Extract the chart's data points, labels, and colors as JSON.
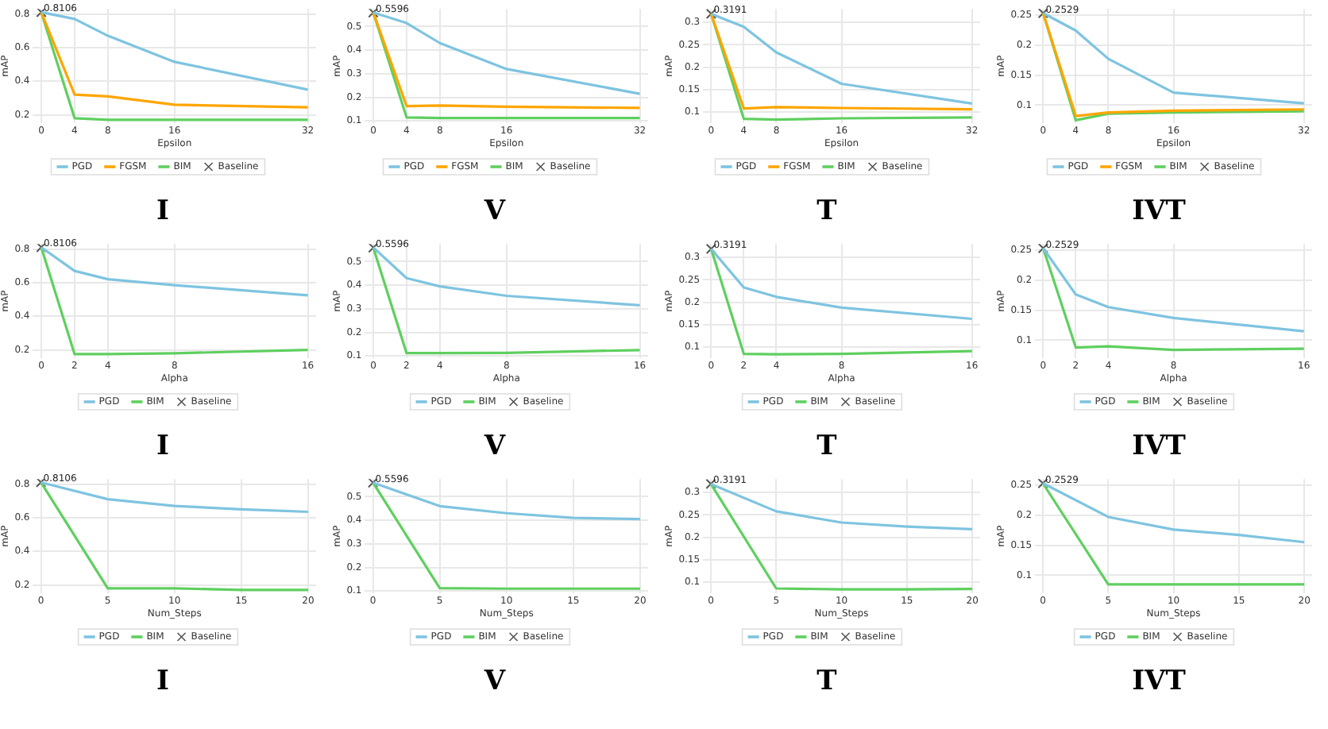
{
  "chart_data": [
    {
      "type": "line",
      "title": "I",
      "xlabel": "Epsilon",
      "ylabel": "mAP",
      "x": [
        0,
        4,
        8,
        16,
        32
      ],
      "xlim": [
        -1,
        33
      ],
      "xticks": [
        0,
        4,
        8,
        16,
        32
      ],
      "ylim": [
        0.15,
        0.83
      ],
      "yticks": [
        0.2,
        0.4,
        0.6,
        0.8
      ],
      "grid": true,
      "legend": "bottom",
      "series": [
        {
          "name": "PGD",
          "color": "#7ec4e0",
          "values": [
            0.81,
            0.77,
            0.67,
            0.515,
            0.35
          ]
        },
        {
          "name": "FGSM",
          "color": "#ffa500",
          "values": [
            0.81,
            0.32,
            0.31,
            0.26,
            0.245
          ]
        },
        {
          "name": "BIM",
          "color": "#5fcf5f",
          "values": [
            0.81,
            0.18,
            0.17,
            0.17,
            0.17
          ]
        },
        {
          "name": "Baseline",
          "type": "scatter",
          "marker": "cross",
          "color": "#555555",
          "values": [
            0.8106,
            null,
            null,
            null,
            null
          ],
          "value_labels": [
            "0.8106",
            null,
            null,
            null,
            null
          ]
        }
      ]
    },
    {
      "type": "line",
      "title": "V",
      "xlabel": "Epsilon",
      "ylabel": "mAP",
      "x": [
        0,
        4,
        8,
        16,
        32
      ],
      "xlim": [
        -1,
        33
      ],
      "xticks": [
        0,
        4,
        8,
        16,
        32
      ],
      "ylim": [
        0.09,
        0.575
      ],
      "yticks": [
        0.1,
        0.2,
        0.3,
        0.4,
        0.5
      ],
      "grid": true,
      "legend": "bottom",
      "series": [
        {
          "name": "PGD",
          "color": "#7ec4e0",
          "values": [
            0.56,
            0.515,
            0.43,
            0.32,
            0.215
          ]
        },
        {
          "name": "FGSM",
          "color": "#ffa500",
          "values": [
            0.56,
            0.163,
            0.165,
            0.16,
            0.155
          ]
        },
        {
          "name": "BIM",
          "color": "#5fcf5f",
          "values": [
            0.56,
            0.115,
            0.112,
            0.112,
            0.112
          ]
        },
        {
          "name": "Baseline",
          "type": "scatter",
          "marker": "cross",
          "color": "#555555",
          "values": [
            0.5596,
            null,
            null,
            null,
            null
          ],
          "value_labels": [
            "0.5596",
            null,
            null,
            null,
            null
          ]
        }
      ]
    },
    {
      "type": "line",
      "title": "T",
      "xlabel": "Epsilon",
      "ylabel": "mAP",
      "x": [
        0,
        4,
        8,
        16,
        32
      ],
      "xlim": [
        -1,
        33
      ],
      "xticks": [
        0,
        4,
        8,
        16,
        32
      ],
      "ylim": [
        0.075,
        0.33
      ],
      "yticks": [
        0.1,
        0.15,
        0.2,
        0.25,
        0.3
      ],
      "grid": true,
      "legend": "bottom",
      "series": [
        {
          "name": "PGD",
          "color": "#7ec4e0",
          "values": [
            0.319,
            0.29,
            0.233,
            0.163,
            0.119
          ]
        },
        {
          "name": "FGSM",
          "color": "#ffa500",
          "values": [
            0.319,
            0.108,
            0.111,
            0.109,
            0.106
          ]
        },
        {
          "name": "BIM",
          "color": "#5fcf5f",
          "values": [
            0.319,
            0.085,
            0.083,
            0.086,
            0.088
          ]
        },
        {
          "name": "Baseline",
          "type": "scatter",
          "marker": "cross",
          "color": "#555555",
          "values": [
            0.3191,
            null,
            null,
            null,
            null
          ],
          "value_labels": [
            "0.3191",
            null,
            null,
            null,
            null
          ]
        }
      ]
    },
    {
      "type": "line",
      "title": "IVT",
      "xlabel": "Epsilon",
      "ylabel": "mAP",
      "x": [
        0,
        4,
        8,
        16,
        32
      ],
      "xlim": [
        -1,
        33
      ],
      "xticks": [
        0,
        4,
        8,
        16,
        32
      ],
      "ylim": [
        0.07,
        0.26
      ],
      "yticks": [
        0.1,
        0.15,
        0.2,
        0.25
      ],
      "grid": true,
      "legend": "bottom",
      "series": [
        {
          "name": "PGD",
          "color": "#7ec4e0",
          "values": [
            0.253,
            0.224,
            0.177,
            0.121,
            0.103
          ]
        },
        {
          "name": "FGSM",
          "color": "#ffa500",
          "values": [
            0.253,
            0.082,
            0.088,
            0.091,
            0.093
          ]
        },
        {
          "name": "BIM",
          "color": "#5fcf5f",
          "values": [
            0.253,
            0.075,
            0.086,
            0.088,
            0.09
          ]
        },
        {
          "name": "Baseline",
          "type": "scatter",
          "marker": "cross",
          "color": "#555555",
          "values": [
            0.2529,
            null,
            null,
            null,
            null
          ],
          "value_labels": [
            "0.2529",
            null,
            null,
            null,
            null
          ]
        }
      ]
    },
    {
      "type": "line",
      "title": "I",
      "xlabel": "Alpha",
      "ylabel": "mAP",
      "x": [
        0,
        2,
        4,
        8,
        16
      ],
      "xlim": [
        -0.5,
        16.5
      ],
      "xticks": [
        0,
        2,
        4,
        8,
        16
      ],
      "ylim": [
        0.15,
        0.83
      ],
      "yticks": [
        0.2,
        0.4,
        0.6,
        0.8
      ],
      "grid": true,
      "legend": "bottom",
      "series": [
        {
          "name": "PGD",
          "color": "#7ec4e0",
          "values": [
            0.81,
            0.67,
            0.62,
            0.585,
            0.525
          ]
        },
        {
          "name": "BIM",
          "color": "#5fcf5f",
          "values": [
            0.81,
            0.175,
            0.175,
            0.18,
            0.2
          ]
        },
        {
          "name": "Baseline",
          "type": "scatter",
          "marker": "cross",
          "color": "#555555",
          "values": [
            0.8106,
            null,
            null,
            null,
            null
          ],
          "value_labels": [
            "0.8106",
            null,
            null,
            null,
            null
          ]
        }
      ]
    },
    {
      "type": "line",
      "title": "V",
      "xlabel": "Alpha",
      "ylabel": "mAP",
      "x": [
        0,
        2,
        4,
        8,
        16
      ],
      "xlim": [
        -0.5,
        16.5
      ],
      "xticks": [
        0,
        2,
        4,
        8,
        16
      ],
      "ylim": [
        0.09,
        0.575
      ],
      "yticks": [
        0.1,
        0.2,
        0.3,
        0.4,
        0.5
      ],
      "grid": true,
      "legend": "bottom",
      "series": [
        {
          "name": "PGD",
          "color": "#7ec4e0",
          "values": [
            0.56,
            0.43,
            0.395,
            0.355,
            0.315
          ]
        },
        {
          "name": "BIM",
          "color": "#5fcf5f",
          "values": [
            0.56,
            0.112,
            0.112,
            0.113,
            0.125
          ]
        },
        {
          "name": "Baseline",
          "type": "scatter",
          "marker": "cross",
          "color": "#555555",
          "values": [
            0.5596,
            null,
            null,
            null,
            null
          ],
          "value_labels": [
            "0.5596",
            null,
            null,
            null,
            null
          ]
        }
      ]
    },
    {
      "type": "line",
      "title": "T",
      "xlabel": "Alpha",
      "ylabel": "mAP",
      "x": [
        0,
        2,
        4,
        8,
        16
      ],
      "xlim": [
        -0.5,
        16.5
      ],
      "xticks": [
        0,
        2,
        4,
        8,
        16
      ],
      "ylim": [
        0.075,
        0.33
      ],
      "yticks": [
        0.1,
        0.15,
        0.2,
        0.25,
        0.3
      ],
      "grid": true,
      "legend": "bottom",
      "series": [
        {
          "name": "PGD",
          "color": "#7ec4e0",
          "values": [
            0.319,
            0.233,
            0.212,
            0.188,
            0.163
          ]
        },
        {
          "name": "BIM",
          "color": "#5fcf5f",
          "values": [
            0.319,
            0.085,
            0.084,
            0.085,
            0.091
          ]
        },
        {
          "name": "Baseline",
          "type": "scatter",
          "marker": "cross",
          "color": "#555555",
          "values": [
            0.3191,
            null,
            null,
            null,
            null
          ],
          "value_labels": [
            "0.3191",
            null,
            null,
            null,
            null
          ]
        }
      ]
    },
    {
      "type": "line",
      "title": "IVT",
      "xlabel": "Alpha",
      "ylabel": "mAP",
      "x": [
        0,
        2,
        4,
        8,
        16
      ],
      "xlim": [
        -0.5,
        16.5
      ],
      "xticks": [
        0,
        2,
        4,
        8,
        16
      ],
      "ylim": [
        0.07,
        0.26
      ],
      "yticks": [
        0.1,
        0.15,
        0.2,
        0.25
      ],
      "grid": true,
      "legend": "bottom",
      "series": [
        {
          "name": "PGD",
          "color": "#7ec4e0",
          "values": [
            0.253,
            0.176,
            0.155,
            0.137,
            0.115
          ]
        },
        {
          "name": "BIM",
          "color": "#5fcf5f",
          "values": [
            0.253,
            0.088,
            0.09,
            0.084,
            0.086
          ]
        },
        {
          "name": "Baseline",
          "type": "scatter",
          "marker": "cross",
          "color": "#555555",
          "values": [
            0.2529,
            null,
            null,
            null,
            null
          ],
          "value_labels": [
            "0.2529",
            null,
            null,
            null,
            null
          ]
        }
      ]
    },
    {
      "type": "line",
      "title": "I",
      "xlabel": "Num_Steps",
      "ylabel": "mAP",
      "x": [
        0,
        5,
        10,
        15,
        20
      ],
      "xlim": [
        -0.6,
        20.6
      ],
      "xticks": [
        0,
        5,
        10,
        15,
        20
      ],
      "ylim": [
        0.15,
        0.83
      ],
      "yticks": [
        0.2,
        0.4,
        0.6,
        0.8
      ],
      "grid": true,
      "legend": "bottom",
      "series": [
        {
          "name": "PGD",
          "color": "#7ec4e0",
          "values": [
            0.81,
            0.71,
            0.67,
            0.65,
            0.635
          ]
        },
        {
          "name": "BIM",
          "color": "#5fcf5f",
          "values": [
            0.81,
            0.18,
            0.18,
            0.17,
            0.17
          ]
        },
        {
          "name": "Baseline",
          "type": "scatter",
          "marker": "cross",
          "color": "#555555",
          "values": [
            0.8106,
            null,
            null,
            null,
            null
          ],
          "value_labels": [
            "0.8106",
            null,
            null,
            null,
            null
          ]
        }
      ]
    },
    {
      "type": "line",
      "title": "V",
      "xlabel": "Num_Steps",
      "ylabel": "mAP",
      "x": [
        0,
        5,
        10,
        15,
        20
      ],
      "xlim": [
        -0.6,
        20.6
      ],
      "xticks": [
        0,
        5,
        10,
        15,
        20
      ],
      "ylim": [
        0.09,
        0.575
      ],
      "yticks": [
        0.1,
        0.2,
        0.3,
        0.4,
        0.5
      ],
      "grid": true,
      "legend": "bottom",
      "series": [
        {
          "name": "PGD",
          "color": "#7ec4e0",
          "values": [
            0.56,
            0.46,
            0.43,
            0.41,
            0.405
          ]
        },
        {
          "name": "BIM",
          "color": "#5fcf5f",
          "values": [
            0.56,
            0.112,
            0.11,
            0.11,
            0.11
          ]
        },
        {
          "name": "Baseline",
          "type": "scatter",
          "marker": "cross",
          "color": "#555555",
          "values": [
            0.5596,
            null,
            null,
            null,
            null
          ],
          "value_labels": [
            "0.5596",
            null,
            null,
            null,
            null
          ]
        }
      ]
    },
    {
      "type": "line",
      "title": "T",
      "xlabel": "Num_Steps",
      "ylabel": "mAP",
      "x": [
        0,
        5,
        10,
        15,
        20
      ],
      "xlim": [
        -0.6,
        20.6
      ],
      "xticks": [
        0,
        5,
        10,
        15,
        20
      ],
      "ylim": [
        0.075,
        0.33
      ],
      "yticks": [
        0.1,
        0.15,
        0.2,
        0.25,
        0.3
      ],
      "grid": true,
      "legend": "bottom",
      "series": [
        {
          "name": "PGD",
          "color": "#7ec4e0",
          "values": [
            0.319,
            0.258,
            0.233,
            0.224,
            0.218
          ]
        },
        {
          "name": "BIM",
          "color": "#5fcf5f",
          "values": [
            0.319,
            0.086,
            0.084,
            0.084,
            0.085
          ]
        },
        {
          "name": "Baseline",
          "type": "scatter",
          "marker": "cross",
          "color": "#555555",
          "values": [
            0.3191,
            null,
            null,
            null,
            null
          ],
          "value_labels": [
            "0.3191",
            null,
            null,
            null,
            null
          ]
        }
      ]
    },
    {
      "type": "line",
      "title": "IVT",
      "xlabel": "Num_Steps",
      "ylabel": "mAP",
      "x": [
        0,
        5,
        10,
        15,
        20
      ],
      "xlim": [
        -0.6,
        20.6
      ],
      "xticks": [
        0,
        5,
        10,
        15,
        20
      ],
      "ylim": [
        0.07,
        0.26
      ],
      "yticks": [
        0.1,
        0.15,
        0.2,
        0.25
      ],
      "grid": true,
      "legend": "bottom",
      "series": [
        {
          "name": "PGD",
          "color": "#7ec4e0",
          "values": [
            0.253,
            0.197,
            0.176,
            0.167,
            0.155
          ]
        },
        {
          "name": "BIM",
          "color": "#5fcf5f",
          "values": [
            0.253,
            0.085,
            0.085,
            0.085,
            0.085
          ]
        },
        {
          "name": "Baseline",
          "type": "scatter",
          "marker": "cross",
          "color": "#555555",
          "values": [
            0.2529,
            null,
            null,
            null,
            null
          ],
          "value_labels": [
            "0.2529",
            null,
            null,
            null,
            null
          ]
        }
      ]
    }
  ]
}
